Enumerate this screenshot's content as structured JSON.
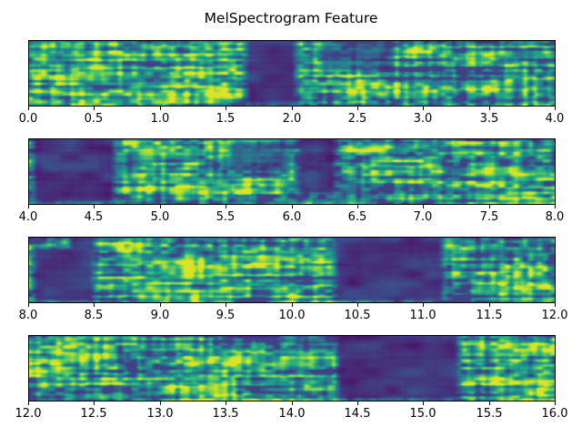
{
  "title": "MelSpectrogram Feature",
  "colors": {
    "background": "#ffffff",
    "text": "#000000",
    "axis_spine": "#000000",
    "colormap_name": "viridis",
    "viridis_stops": [
      "#440154",
      "#482878",
      "#3e4989",
      "#31688e",
      "#26828e",
      "#1f9e89",
      "#35b779",
      "#6ece58",
      "#b5de2b",
      "#fde725"
    ]
  },
  "chart_data": {
    "type": "heatmap",
    "title": "MelSpectrogram Feature",
    "xlabel": "",
    "ylabel": "",
    "x_unit": "seconds",
    "colormap": "viridis",
    "layout": "4 stacked panels, each a mel-spectrogram strip over a 4-second window; no y-axis ticks; x ticks every 0.5 s",
    "subplots": [
      {
        "panel": 1,
        "x_range": [
          0.0,
          4.0
        ],
        "x_ticks": [
          "0.0",
          "0.5",
          "1.0",
          "1.5",
          "2.0",
          "2.5",
          "3.0",
          "3.5",
          "4.0"
        ],
        "activity_segments": [
          {
            "start": 0.0,
            "end": 1.62,
            "label": "speech"
          },
          {
            "start": 1.62,
            "end": 2.06,
            "label": "silence"
          },
          {
            "start": 2.06,
            "end": 4.0,
            "label": "speech"
          }
        ],
        "dim_patches": [
          {
            "start": 2.2,
            "end": 2.78,
            "strength": 0.55,
            "y": [
              0,
              0.45
            ]
          }
        ]
      },
      {
        "panel": 2,
        "x_range": [
          4.0,
          8.0
        ],
        "x_ticks": [
          "4.0",
          "4.5",
          "5.0",
          "5.5",
          "6.0",
          "6.5",
          "7.0",
          "7.5",
          "8.0"
        ],
        "activity_segments": [
          {
            "start": 4.0,
            "end": 4.68,
            "label": "silence"
          },
          {
            "start": 4.68,
            "end": 8.0,
            "label": "speech"
          }
        ],
        "dim_patches": [
          {
            "start": 5.5,
            "end": 5.98,
            "strength": 0.7,
            "y": [
              0.05,
              0.5
            ]
          },
          {
            "start": 6.02,
            "end": 6.36,
            "strength": 0.9,
            "y": [
              0,
              0.85
            ]
          }
        ]
      },
      {
        "panel": 3,
        "x_range": [
          8.0,
          12.0
        ],
        "x_ticks": [
          "8.0",
          "8.5",
          "9.0",
          "9.5",
          "10.0",
          "10.5",
          "11.0",
          "11.5",
          "12.0"
        ],
        "activity_segments": [
          {
            "start": 8.0,
            "end": 8.52,
            "label": "silence",
            "y": [
              0.15,
              1
            ]
          },
          {
            "start": 8.52,
            "end": 10.3,
            "label": "speech"
          },
          {
            "start": 10.3,
            "end": 11.18,
            "label": "silence"
          },
          {
            "start": 11.18,
            "end": 12.0,
            "label": "speech"
          }
        ],
        "dim_patches": [
          {
            "start": 8.28,
            "end": 8.52,
            "strength": 0.85,
            "y": [
              0,
              0.3
            ]
          }
        ]
      },
      {
        "panel": 4,
        "x_range": [
          12.0,
          16.0
        ],
        "x_ticks": [
          "12.0",
          "12.5",
          "13.0",
          "13.5",
          "14.0",
          "14.5",
          "15.0",
          "15.5",
          "16.0"
        ],
        "activity_segments": [
          {
            "start": 12.0,
            "end": 14.32,
            "label": "speech"
          },
          {
            "start": 14.32,
            "end": 15.3,
            "label": "silence"
          },
          {
            "start": 15.3,
            "end": 16.0,
            "label": "speech"
          }
        ],
        "dim_patches": []
      }
    ]
  }
}
